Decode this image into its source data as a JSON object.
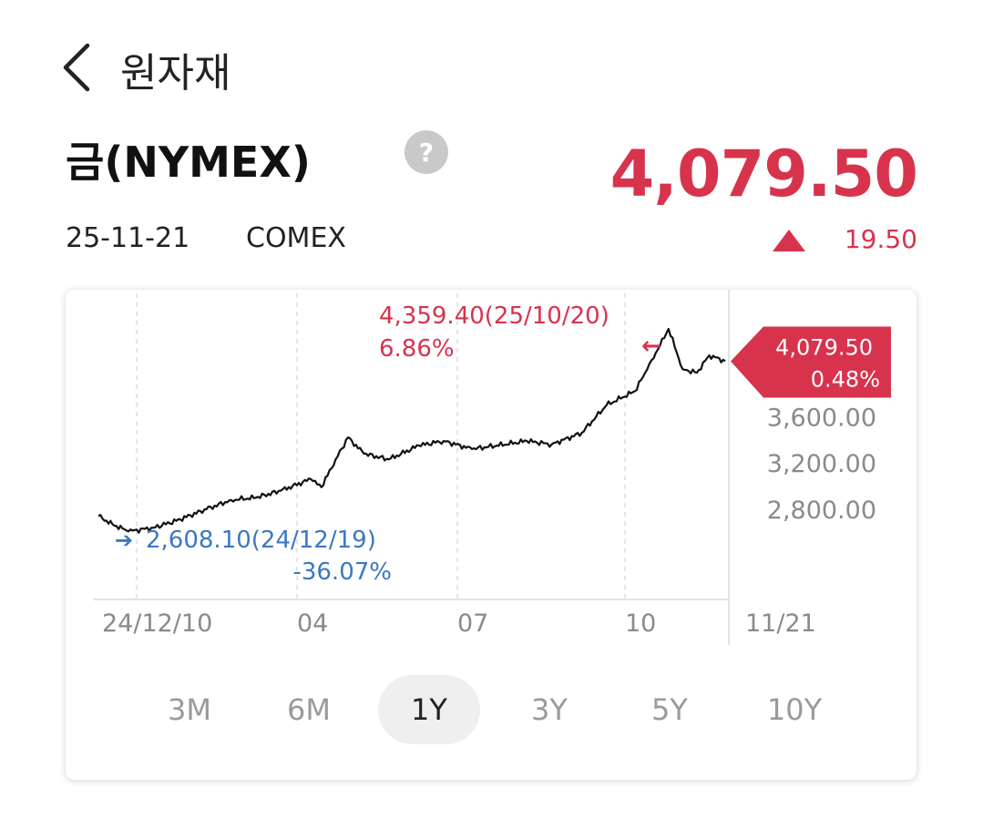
{
  "header": {
    "title": "원자재",
    "back_icon": "chevron-left-icon"
  },
  "asset": {
    "name": "금(NYMEX)",
    "help_icon": "question-mark-icon",
    "help_symbol": "?",
    "price": "4,079.50",
    "date": "25-11-21",
    "exchange": "COMEX",
    "change_icon": "triangle-up-icon",
    "change": "19.50"
  },
  "colors": {
    "up": "#d8334d",
    "down": "#3b78c2",
    "line": "#111111",
    "grid": "#dddddd",
    "axis_text": "#8a8a8a"
  },
  "chart_data": {
    "type": "line",
    "title": "",
    "xlabel": "",
    "ylabel": "",
    "x_ticks": [
      "24/12/10",
      "04",
      "07",
      "10",
      "11/21"
    ],
    "y_ticks": [
      "2,800.00",
      "3,200.00",
      "3,600.00"
    ],
    "y_tick_values": [
      2800,
      3200,
      3600
    ],
    "ylim": [
      2020,
      4540
    ],
    "grid": "vertical dashed",
    "x": [
      "24/12/02",
      "24/12/10",
      "24/12/19",
      "25/01/02",
      "25/01/15",
      "25/02/01",
      "25/02/15",
      "25/03/01",
      "25/03/15",
      "25/04/01",
      "25/04/07",
      "25/04/15",
      "25/04/22",
      "25/05/01",
      "25/05/15",
      "25/06/01",
      "25/06/15",
      "25/07/01",
      "25/07/15",
      "25/08/01",
      "25/08/15",
      "25/09/01",
      "25/09/15",
      "25/10/01",
      "25/10/08",
      "25/10/14",
      "25/10/20",
      "25/10/28",
      "25/11/05",
      "25/11/12",
      "25/11/21"
    ],
    "values": [
      2740,
      2670,
      2608,
      2640,
      2700,
      2800,
      2880,
      2900,
      2960,
      3060,
      2990,
      3230,
      3420,
      3280,
      3230,
      3350,
      3390,
      3320,
      3350,
      3390,
      3360,
      3460,
      3700,
      3820,
      4010,
      4180,
      4359,
      4010,
      3980,
      4130,
      4079
    ],
    "max_annotation": {
      "value": "4,359.40(25/10/20)",
      "pct": "6.86%",
      "arrow": "←"
    },
    "min_annotation": {
      "value": "2,608.10(24/12/19)",
      "pct": "-36.07%",
      "arrow": "➔"
    },
    "current_label": {
      "value": "4,079.50",
      "pct": "0.48%"
    }
  },
  "ranges": [
    "3M",
    "6M",
    "1Y",
    "3Y",
    "5Y",
    "10Y"
  ],
  "active_range": "1Y"
}
